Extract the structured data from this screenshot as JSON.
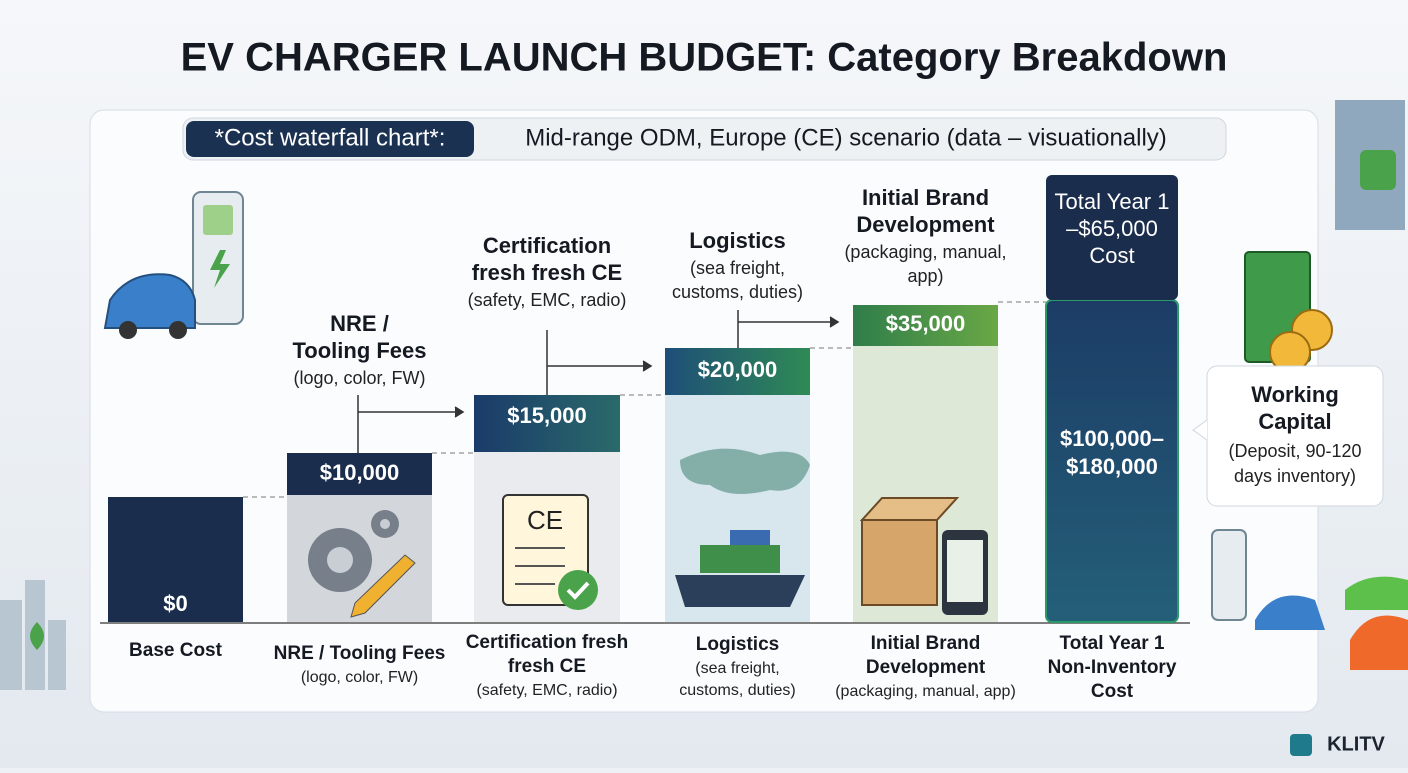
{
  "title": "EV CHARGER LAUNCH BUDGET: Category Breakdown",
  "subtitle": {
    "label": "*Cost waterfall chart*:",
    "text": "Mid-range ODM, Europe (CE)  scenario (data – visuationally)"
  },
  "columns": [
    {
      "amount": [
        "$0"
      ],
      "bottom": [
        "Base Cost"
      ],
      "bottom_detail": []
    },
    {
      "top": [
        "NRE  /",
        "Tooling Fees"
      ],
      "top_detail": [
        "(logo, color, FW)"
      ],
      "amount": [
        "$10,000"
      ],
      "bottom": [
        "NRE / Tooling Fees"
      ],
      "bottom_detail": [
        "(logo, color, FW)"
      ]
    },
    {
      "top": [
        "Certification",
        "fresh fresh CE"
      ],
      "top_detail": [
        "(safety, EMC, radio)"
      ],
      "amount": [
        "$15,000"
      ],
      "bottom": [
        "Certification fresh",
        "fresh CE"
      ],
      "bottom_detail": [
        "(safety, EMC, radio)"
      ]
    },
    {
      "top": [
        "Logistics"
      ],
      "top_detail": [
        "(sea freight,",
        "customs, duties)"
      ],
      "amount": [
        "$20,000"
      ],
      "bottom": [
        "Logistics"
      ],
      "bottom_detail": [
        "(sea freight,",
        "customs, duties)"
      ]
    },
    {
      "top": [
        "Initial Brand",
        "Development"
      ],
      "top_detail": [
        "(packaging, manual,",
        "app)"
      ],
      "amount": [
        "$35,000"
      ],
      "bottom": [
        "Initial Brand",
        "Development"
      ],
      "bottom_detail": [
        "(packaging, manual, app)"
      ]
    },
    {
      "top": [
        "Total Year 1",
        "–$65,000",
        "Cost"
      ],
      "amount": [
        "$100,000–",
        "$180,000"
      ],
      "bottom": [
        "Total Year 1",
        "Non-Inventory",
        "Cost"
      ],
      "bottom_detail": []
    }
  ],
  "callout": {
    "title": [
      "Working",
      "Capital"
    ],
    "detail": [
      "(Deposit, 90-120",
      "days inventory)"
    ]
  },
  "logo": "KLITV"
}
